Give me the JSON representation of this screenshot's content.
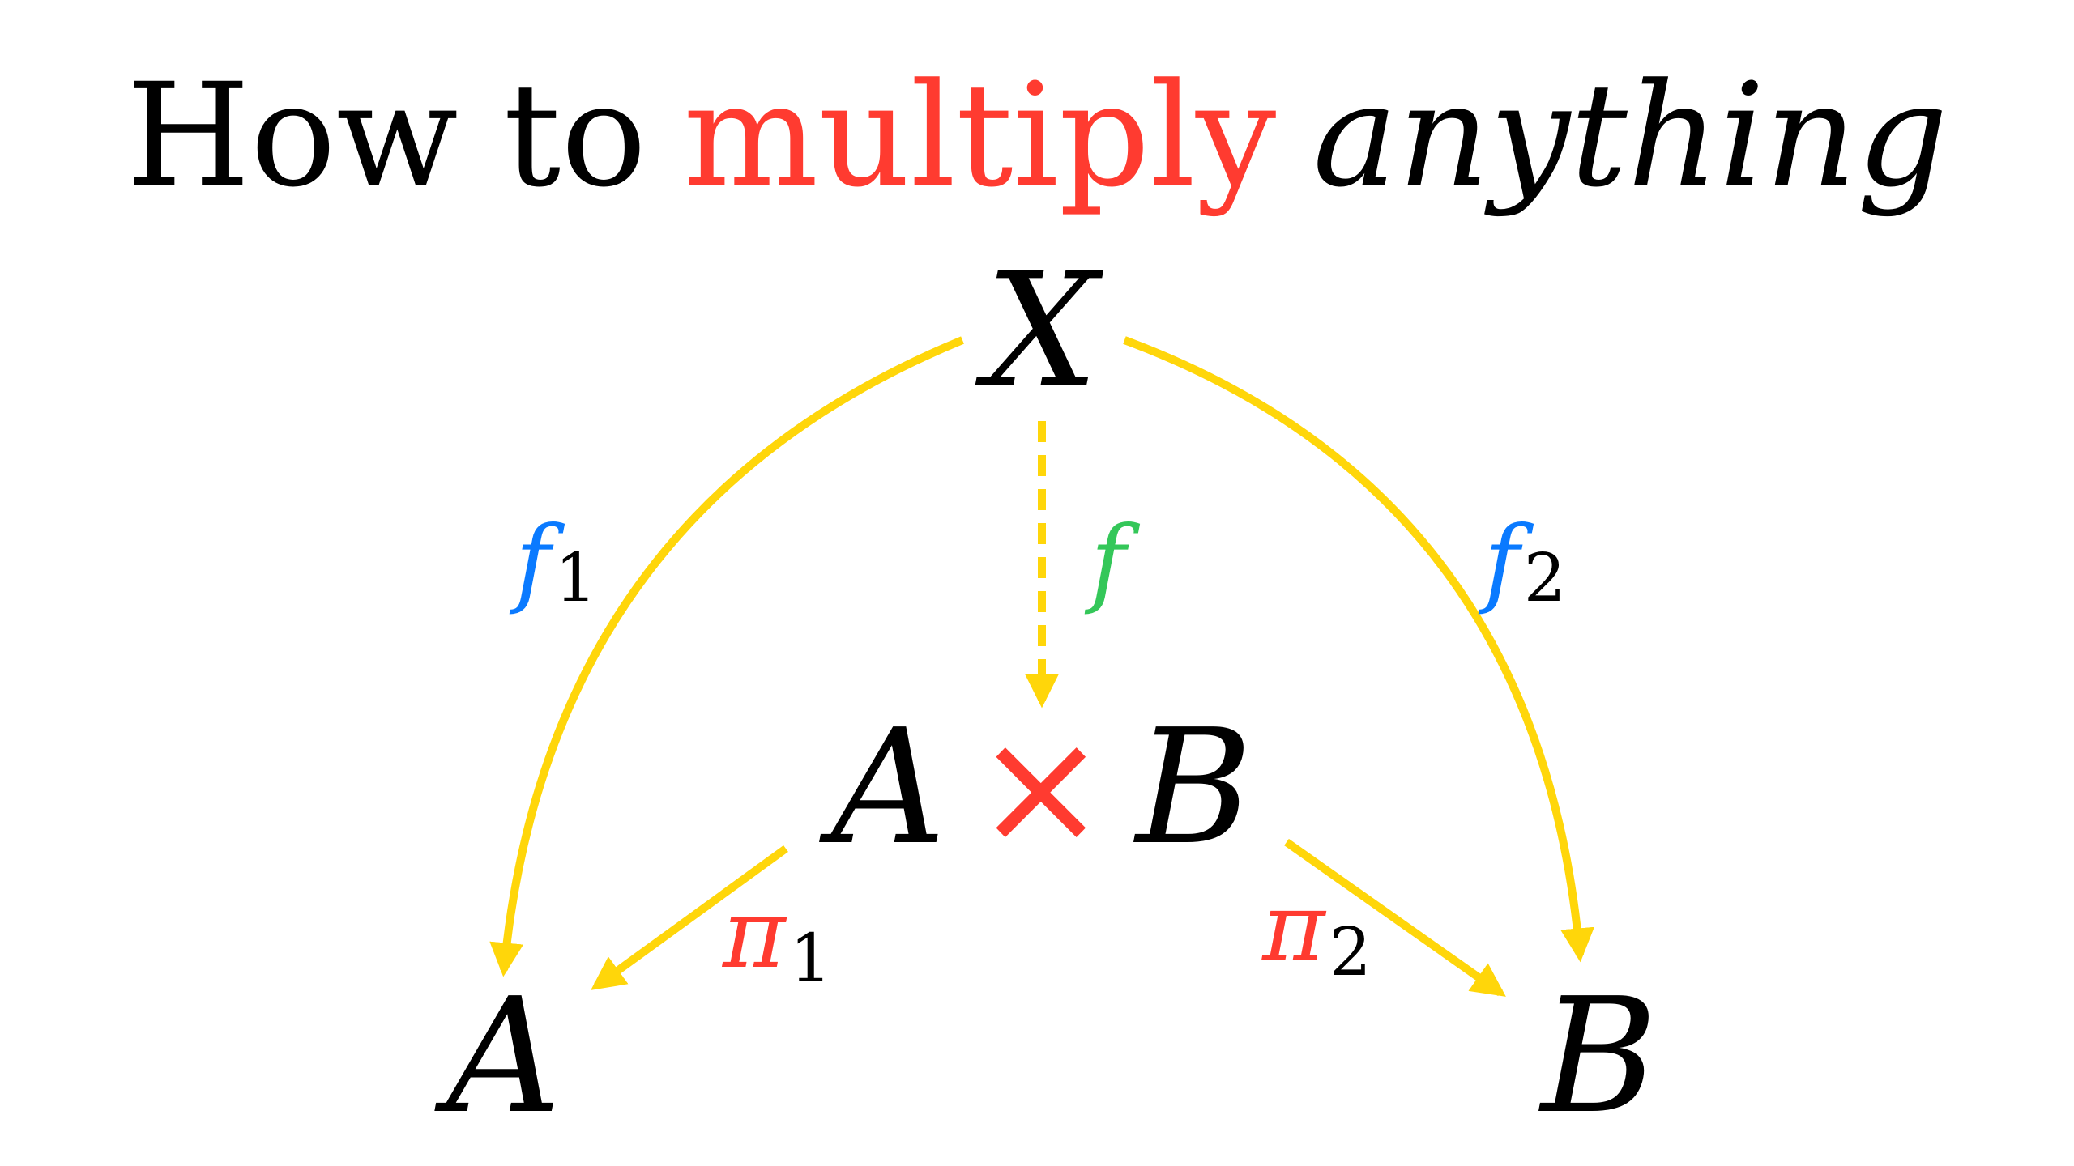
{
  "colors": {
    "background": "#ffffff",
    "text": "#000000",
    "accent_red": "#ff3b30",
    "arrow_yellow": "#ffd60a",
    "label_blue": "#0a7aff",
    "label_green": "#34c759"
  },
  "title": {
    "part1": "How to",
    "part2": "multiply",
    "part3": "anything"
  },
  "nodes": {
    "top": "X",
    "product_left": "A",
    "product_op": "×",
    "product_right": "B",
    "bottom_left": "A",
    "bottom_right": "B"
  },
  "arrows": {
    "f1": {
      "symbol": "f",
      "subscript": "1",
      "symbol_color": "#0a7aff",
      "style": "solid"
    },
    "f2": {
      "symbol": "f",
      "subscript": "2",
      "symbol_color": "#0a7aff",
      "style": "solid"
    },
    "f": {
      "symbol": "f",
      "subscript": "",
      "symbol_color": "#34c759",
      "style": "dashed"
    },
    "pi1": {
      "symbol": "π",
      "subscript": "1",
      "symbol_color": "#ff3b30",
      "style": "solid"
    },
    "pi2": {
      "symbol": "π",
      "subscript": "2",
      "symbol_color": "#ff3b30",
      "style": "solid"
    }
  }
}
